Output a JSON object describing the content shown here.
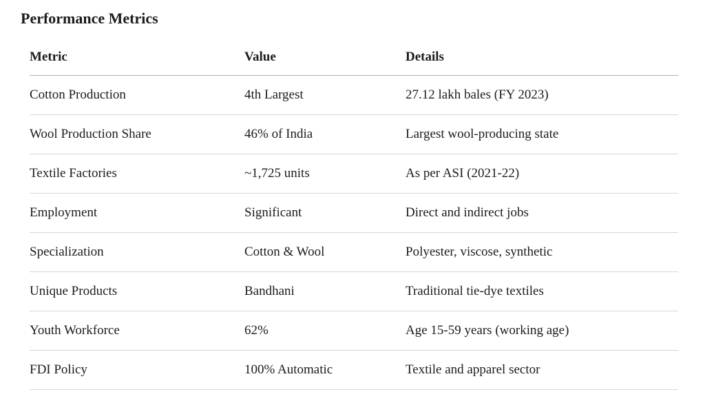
{
  "page": {
    "title": "Performance Metrics"
  },
  "colors": {
    "text": "#1b1b1b",
    "background": "#ffffff",
    "header_border": "#aeaeae",
    "row_border": "#d6d6d6"
  },
  "table": {
    "columns": [
      "Metric",
      "Value",
      "Details"
    ],
    "rows": [
      {
        "metric": "Cotton Production",
        "value": "4th Largest",
        "details": "27.12 lakh bales (FY 2023)"
      },
      {
        "metric": "Wool Production Share",
        "value": "46% of India",
        "details": "Largest wool-producing state"
      },
      {
        "metric": "Textile Factories",
        "value": "~1,725 units",
        "details": "As per ASI (2021-22)"
      },
      {
        "metric": "Employment",
        "value": "Significant",
        "details": "Direct and indirect jobs"
      },
      {
        "metric": "Specialization",
        "value": "Cotton & Wool",
        "details": "Polyester, viscose, synthetic"
      },
      {
        "metric": "Unique Products",
        "value": "Bandhani",
        "details": "Traditional tie-dye textiles"
      },
      {
        "metric": "Youth Workforce",
        "value": "62%",
        "details": "Age 15-59 years (working age)"
      },
      {
        "metric": "FDI Policy",
        "value": "100% Automatic",
        "details": "Textile and apparel sector"
      }
    ]
  }
}
